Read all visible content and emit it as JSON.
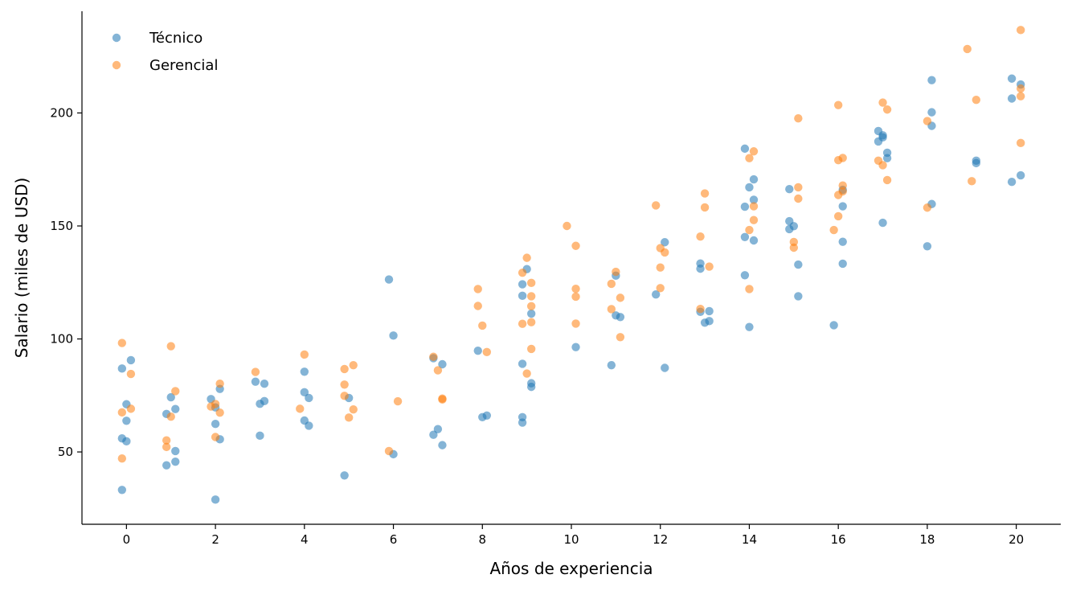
{
  "chart_data": {
    "type": "scatter",
    "xlabel": "Años de experiencia",
    "ylabel": "Salario (miles de USD)",
    "xlim": [
      -1,
      21
    ],
    "ylim": [
      18,
      245
    ],
    "x_ticks": [
      0,
      2,
      4,
      6,
      8,
      10,
      12,
      14,
      16,
      18,
      20
    ],
    "y_ticks": [
      50,
      100,
      150,
      200
    ],
    "grid": false,
    "legend_position": "top-left",
    "series": [
      {
        "name": "Técnico",
        "color": "#1f77b4",
        "points": [
          [
            -0.1,
            86.9
          ],
          [
            0.1,
            90.6
          ],
          [
            0.0,
            71.1
          ],
          [
            0.0,
            63.8
          ],
          [
            -0.1,
            56.0
          ],
          [
            0.0,
            54.7
          ],
          [
            -0.1,
            33.2
          ],
          [
            1.0,
            74.2
          ],
          [
            1.1,
            69.0
          ],
          [
            0.9,
            66.8
          ],
          [
            1.1,
            50.4
          ],
          [
            1.1,
            45.7
          ],
          [
            0.9,
            44.1
          ],
          [
            2.1,
            77.9
          ],
          [
            1.9,
            73.4
          ],
          [
            2.0,
            69.7
          ],
          [
            2.0,
            62.4
          ],
          [
            2.1,
            55.6
          ],
          [
            2.0,
            28.9
          ],
          [
            2.9,
            81.1
          ],
          [
            3.1,
            80.2
          ],
          [
            3.1,
            72.5
          ],
          [
            3.0,
            71.3
          ],
          [
            3.0,
            57.2
          ],
          [
            4.0,
            85.5
          ],
          [
            4.0,
            76.4
          ],
          [
            4.1,
            73.9
          ],
          [
            4.0,
            63.9
          ],
          [
            4.1,
            61.6
          ],
          [
            5.0,
            73.9
          ],
          [
            4.9,
            39.6
          ],
          [
            5.9,
            126.3
          ],
          [
            6.0,
            101.5
          ],
          [
            6.0,
            49.0
          ],
          [
            6.9,
            91.5
          ],
          [
            7.1,
            88.8
          ],
          [
            7.0,
            60.1
          ],
          [
            6.9,
            57.6
          ],
          [
            7.1,
            53.0
          ],
          [
            7.9,
            94.8
          ],
          [
            8.1,
            66.1
          ],
          [
            8.0,
            65.4
          ],
          [
            9.0,
            130.9
          ],
          [
            8.9,
            124.2
          ],
          [
            8.9,
            119.1
          ],
          [
            9.1,
            111.2
          ],
          [
            8.9,
            89.0
          ],
          [
            9.1,
            80.4
          ],
          [
            9.1,
            78.8
          ],
          [
            8.9,
            65.4
          ],
          [
            8.9,
            63.0
          ],
          [
            10.1,
            96.4
          ],
          [
            11.0,
            128.0
          ],
          [
            11.0,
            110.4
          ],
          [
            11.1,
            109.7
          ],
          [
            10.9,
            88.4
          ],
          [
            12.1,
            142.8
          ],
          [
            11.9,
            119.7
          ],
          [
            12.1,
            87.2
          ],
          [
            12.9,
            133.4
          ],
          [
            12.9,
            131.1
          ],
          [
            13.1,
            112.3
          ],
          [
            12.9,
            112.0
          ],
          [
            13.1,
            107.9
          ],
          [
            13.0,
            107.2
          ],
          [
            13.9,
            184.2
          ],
          [
            14.1,
            170.6
          ],
          [
            14.0,
            167.1
          ],
          [
            14.1,
            161.6
          ],
          [
            13.9,
            158.5
          ],
          [
            13.9,
            145.1
          ],
          [
            14.1,
            143.6
          ],
          [
            13.9,
            128.2
          ],
          [
            14.0,
            105.3
          ],
          [
            14.9,
            166.3
          ],
          [
            14.9,
            152.1
          ],
          [
            15.0,
            149.9
          ],
          [
            14.9,
            148.6
          ],
          [
            15.1,
            132.9
          ],
          [
            15.1,
            118.9
          ],
          [
            16.1,
            166.0
          ],
          [
            16.1,
            158.7
          ],
          [
            16.1,
            143.0
          ],
          [
            16.1,
            133.3
          ],
          [
            15.9,
            106.1
          ],
          [
            16.9,
            192.0
          ],
          [
            17.0,
            190.1
          ],
          [
            17.0,
            189.2
          ],
          [
            16.9,
            187.4
          ],
          [
            17.1,
            182.4
          ],
          [
            17.1,
            180.0
          ],
          [
            17.0,
            151.4
          ],
          [
            18.1,
            214.5
          ],
          [
            18.1,
            200.3
          ],
          [
            18.1,
            194.3
          ],
          [
            18.1,
            159.7
          ],
          [
            18.0,
            141.0
          ],
          [
            19.9,
            215.2
          ],
          [
            20.1,
            212.6
          ],
          [
            19.9,
            206.4
          ],
          [
            19.1,
            178.9
          ],
          [
            19.1,
            177.8
          ],
          [
            20.1,
            172.4
          ],
          [
            19.9,
            169.5
          ]
        ]
      },
      {
        "name": "Gerencial",
        "color": "#ff7f0e",
        "points": [
          [
            -0.1,
            98.2
          ],
          [
            0.1,
            84.5
          ],
          [
            0.1,
            69.1
          ],
          [
            -0.1,
            67.5
          ],
          [
            -0.1,
            47.1
          ],
          [
            1.0,
            96.8
          ],
          [
            1.1,
            76.9
          ],
          [
            1.0,
            65.6
          ],
          [
            0.9,
            55.1
          ],
          [
            0.9,
            52.2
          ],
          [
            2.1,
            80.2
          ],
          [
            2.0,
            71.2
          ],
          [
            1.9,
            70.1
          ],
          [
            2.1,
            67.4
          ],
          [
            2.0,
            56.6
          ],
          [
            2.9,
            85.4
          ],
          [
            4.0,
            93.1
          ],
          [
            3.9,
            69.1
          ],
          [
            5.1,
            88.4
          ],
          [
            4.9,
            86.7
          ],
          [
            4.9,
            79.8
          ],
          [
            4.9,
            74.8
          ],
          [
            5.1,
            68.8
          ],
          [
            5.0,
            65.2
          ],
          [
            6.1,
            72.4
          ],
          [
            5.9,
            50.4
          ],
          [
            6.9,
            92.1
          ],
          [
            7.0,
            86.1
          ],
          [
            7.1,
            73.6
          ],
          [
            7.1,
            73.2
          ],
          [
            7.9,
            122.1
          ],
          [
            7.9,
            114.6
          ],
          [
            8.0,
            105.9
          ],
          [
            8.1,
            94.2
          ],
          [
            9.0,
            135.9
          ],
          [
            8.9,
            129.3
          ],
          [
            9.1,
            124.8
          ],
          [
            9.1,
            118.9
          ],
          [
            9.1,
            114.5
          ],
          [
            9.1,
            107.4
          ],
          [
            8.9,
            106.7
          ],
          [
            9.1,
            95.6
          ],
          [
            9.0,
            84.7
          ],
          [
            9.9,
            150.0
          ],
          [
            10.1,
            141.2
          ],
          [
            10.1,
            122.2
          ],
          [
            10.1,
            118.7
          ],
          [
            10.1,
            106.8
          ],
          [
            11.0,
            129.7
          ],
          [
            10.9,
            124.4
          ],
          [
            11.1,
            118.2
          ],
          [
            10.9,
            113.2
          ],
          [
            11.1,
            100.8
          ],
          [
            11.9,
            159.1
          ],
          [
            12.0,
            140.2
          ],
          [
            12.1,
            138.3
          ],
          [
            12.0,
            131.6
          ],
          [
            12.0,
            122.5
          ],
          [
            13.0,
            164.4
          ],
          [
            13.0,
            158.2
          ],
          [
            12.9,
            145.3
          ],
          [
            13.1,
            132.0
          ],
          [
            12.9,
            113.3
          ],
          [
            14.1,
            183.0
          ],
          [
            14.0,
            180.0
          ],
          [
            14.1,
            158.7
          ],
          [
            14.1,
            152.6
          ],
          [
            14.0,
            148.2
          ],
          [
            14.0,
            122.1
          ],
          [
            15.1,
            197.6
          ],
          [
            15.1,
            167.1
          ],
          [
            15.1,
            162.1
          ],
          [
            15.0,
            142.9
          ],
          [
            15.0,
            140.4
          ],
          [
            16.0,
            203.5
          ],
          [
            16.1,
            180.1
          ],
          [
            16.0,
            179.1
          ],
          [
            16.1,
            167.9
          ],
          [
            16.1,
            165.3
          ],
          [
            16.0,
            163.7
          ],
          [
            16.0,
            154.3
          ],
          [
            15.9,
            148.2
          ],
          [
            17.0,
            204.6
          ],
          [
            17.1,
            201.5
          ],
          [
            16.9,
            178.9
          ],
          [
            17.0,
            176.9
          ],
          [
            17.1,
            170.3
          ],
          [
            18.0,
            196.4
          ],
          [
            18.0,
            158.1
          ],
          [
            18.9,
            228.3
          ],
          [
            19.1,
            205.8
          ],
          [
            19.0,
            169.8
          ],
          [
            20.1,
            236.7
          ],
          [
            20.1,
            210.8
          ],
          [
            20.1,
            207.4
          ],
          [
            20.1,
            186.7
          ]
        ]
      }
    ]
  }
}
